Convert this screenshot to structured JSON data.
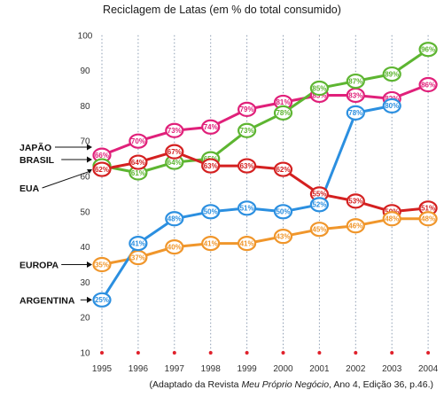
{
  "chart_data": {
    "type": "line",
    "title": "Reciclagem de Latas (em % do total consumido)",
    "x": [
      "1995",
      "1996",
      "1997",
      "1998",
      "1999",
      "2000",
      "2001",
      "2002",
      "2003",
      "2004"
    ],
    "yticks": [
      10,
      20,
      30,
      40,
      50,
      60,
      70,
      80,
      90,
      100
    ],
    "ylim": [
      10,
      100
    ],
    "grid": "vertical-dotted",
    "series": [
      {
        "name": "JAPÃO",
        "color": "#e0207a",
        "label_ref": 1995,
        "x": [
          1995,
          1996,
          1997,
          1998,
          1999,
          2000,
          2001,
          2002,
          2003,
          2004
        ],
        "values": [
          66,
          70,
          73,
          74,
          79,
          81,
          83,
          83,
          82,
          86
        ]
      },
      {
        "name": "BRASIL",
        "color": "#5db531",
        "label_ref": 1995,
        "x": [
          1995,
          1996,
          1997,
          1998,
          1999,
          2000,
          2001,
          2002,
          2003,
          2004
        ],
        "values": [
          63,
          61,
          64,
          65,
          73,
          78,
          85,
          87,
          89,
          96
        ]
      },
      {
        "name": "EUA",
        "color": "#d42020",
        "label_ref": 1995,
        "x": [
          1995,
          1996,
          1997,
          1998,
          1999,
          2000,
          2001,
          2002,
          2003,
          2004
        ],
        "values": [
          62,
          64,
          67,
          63,
          63,
          62,
          55,
          53,
          50,
          51
        ]
      },
      {
        "name": "EUROPA",
        "color": "#f0962b",
        "label_ref": 1995,
        "x": [
          1995,
          1996,
          1997,
          1998,
          1999,
          2000,
          2001,
          2002,
          2003,
          2004
        ],
        "values": [
          35,
          37,
          40,
          41,
          41,
          43,
          45,
          46,
          48,
          48
        ]
      },
      {
        "name": "ARGENTINA",
        "color": "#2b8fe0",
        "label_ref": 1995,
        "x": [
          1995,
          1996,
          1997,
          1998,
          1999,
          2000,
          2001,
          2002,
          2003
        ],
        "values": [
          25,
          41,
          48,
          50,
          51,
          50,
          52,
          78,
          80
        ]
      }
    ]
  },
  "source_prefix": "(Adaptado da Revista ",
  "source_magazine": "Meu Próprio Negócio",
  "source_suffix": ", Ano 4, Edição 36, p.46.)"
}
